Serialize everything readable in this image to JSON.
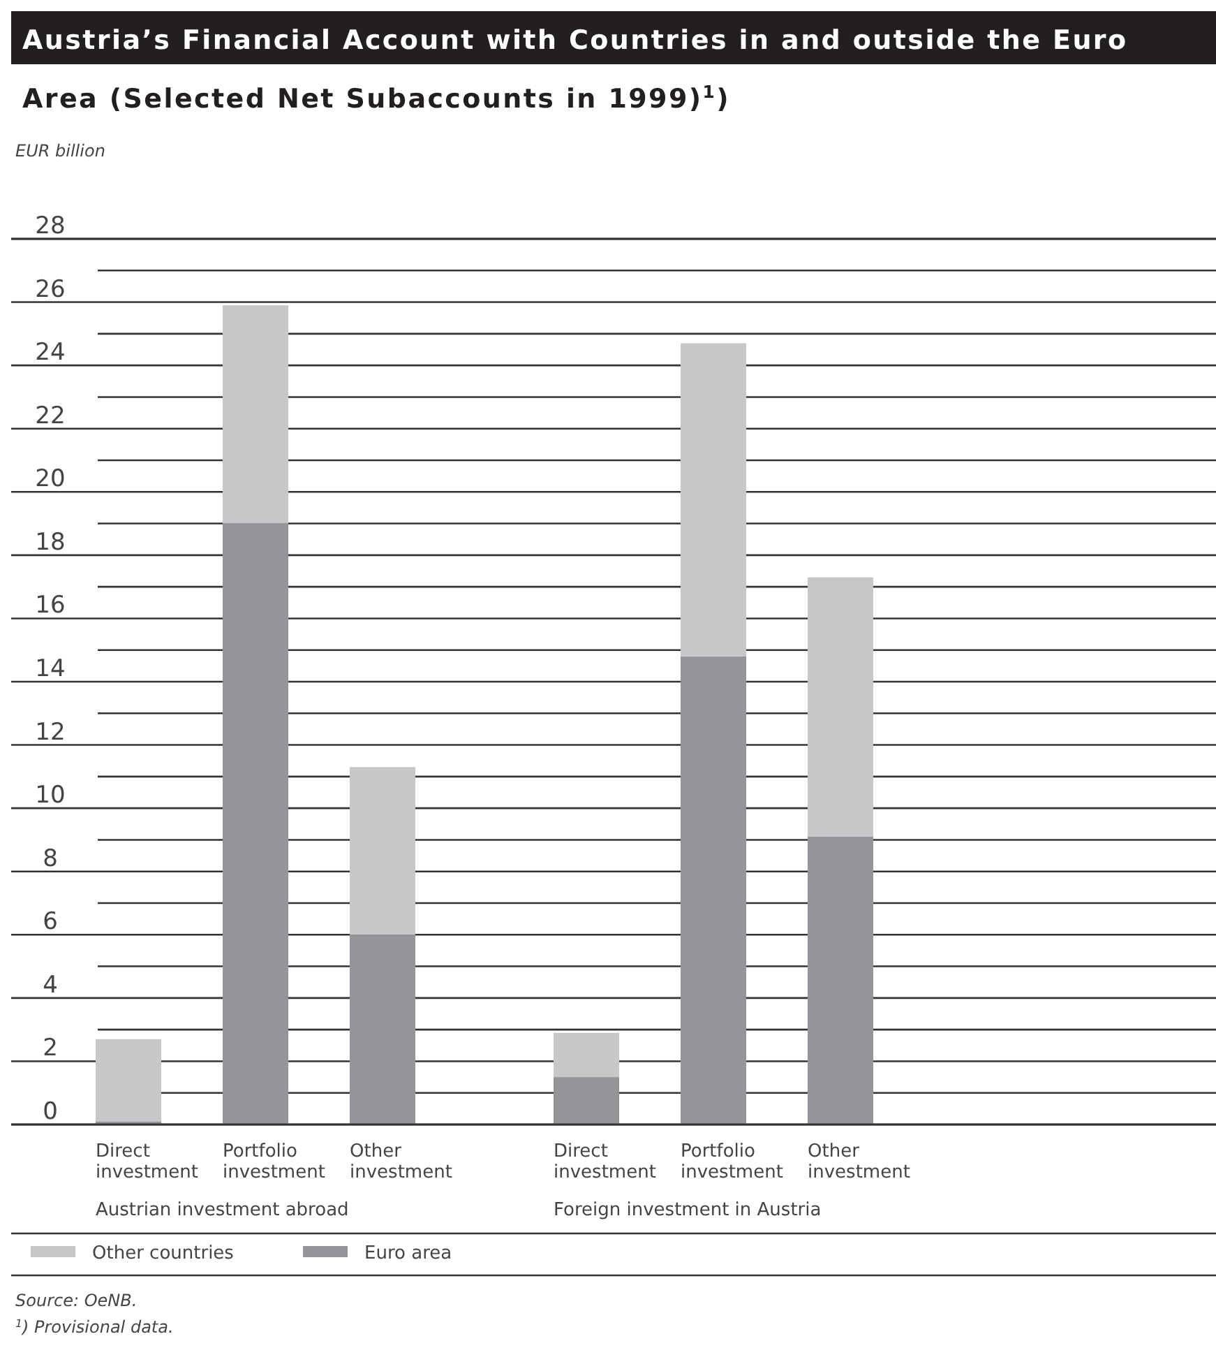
{
  "chart_data": {
    "type": "bar",
    "stacked": true,
    "title": "Austria’s Financial Account with Countries in and outside the Euro Area (Selected Net Subaccounts in 1999)$^{1}$)",
    "ylabel": "EUR billion",
    "categories": [
      "Direct investment",
      "Portfolio investment",
      "Other investment",
      "Direct investment",
      "Portfolio investment",
      "Other investment"
    ],
    "series": [
      {
        "name": "Euro area",
        "color": "#949599",
        "values": [
          0.1,
          19.0,
          6.0,
          1.5,
          14.8,
          9.1
        ]
      },
      {
        "name": "Other countries",
        "color": "#c6c7c9",
        "values": [
          2.6,
          6.9,
          5.3,
          1.4,
          9.9,
          8.2
        ]
      }
    ],
    "ylim": [
      0,
      28
    ],
    "yticks": [
      0,
      {
        "value": 1,
        "label": null
      },
      2,
      {
        "value": 3,
        "label": null
      },
      4,
      {
        "value": 5,
        "label": null
      },
      6,
      {
        "value": 7,
        "label": null
      },
      8,
      {
        "value": 9,
        "label": null
      },
      10,
      {
        "value": 11,
        "label": null
      },
      12,
      {
        "value": 13,
        "label": null
      },
      14,
      {
        "value": 15,
        "label": null
      },
      16,
      {
        "value": 17,
        "label": null
      },
      18,
      {
        "value": 19,
        "label": null
      },
      20,
      {
        "value": 21,
        "label": null
      },
      22,
      {
        "value": 23,
        "label": null
      },
      24,
      {
        "value": 25,
        "label": null
      },
      26,
      {
        "value": 27,
        "label": null
      },
      28
    ],
    "grid": "y",
    "legend": "bottom",
    "annotations": [
      "Austrian investment abroad",
      "Foreign investment in Austria",
      "Source: OeNB.",
      "$^{1}$) Provisional data."
    ]
  }
}
